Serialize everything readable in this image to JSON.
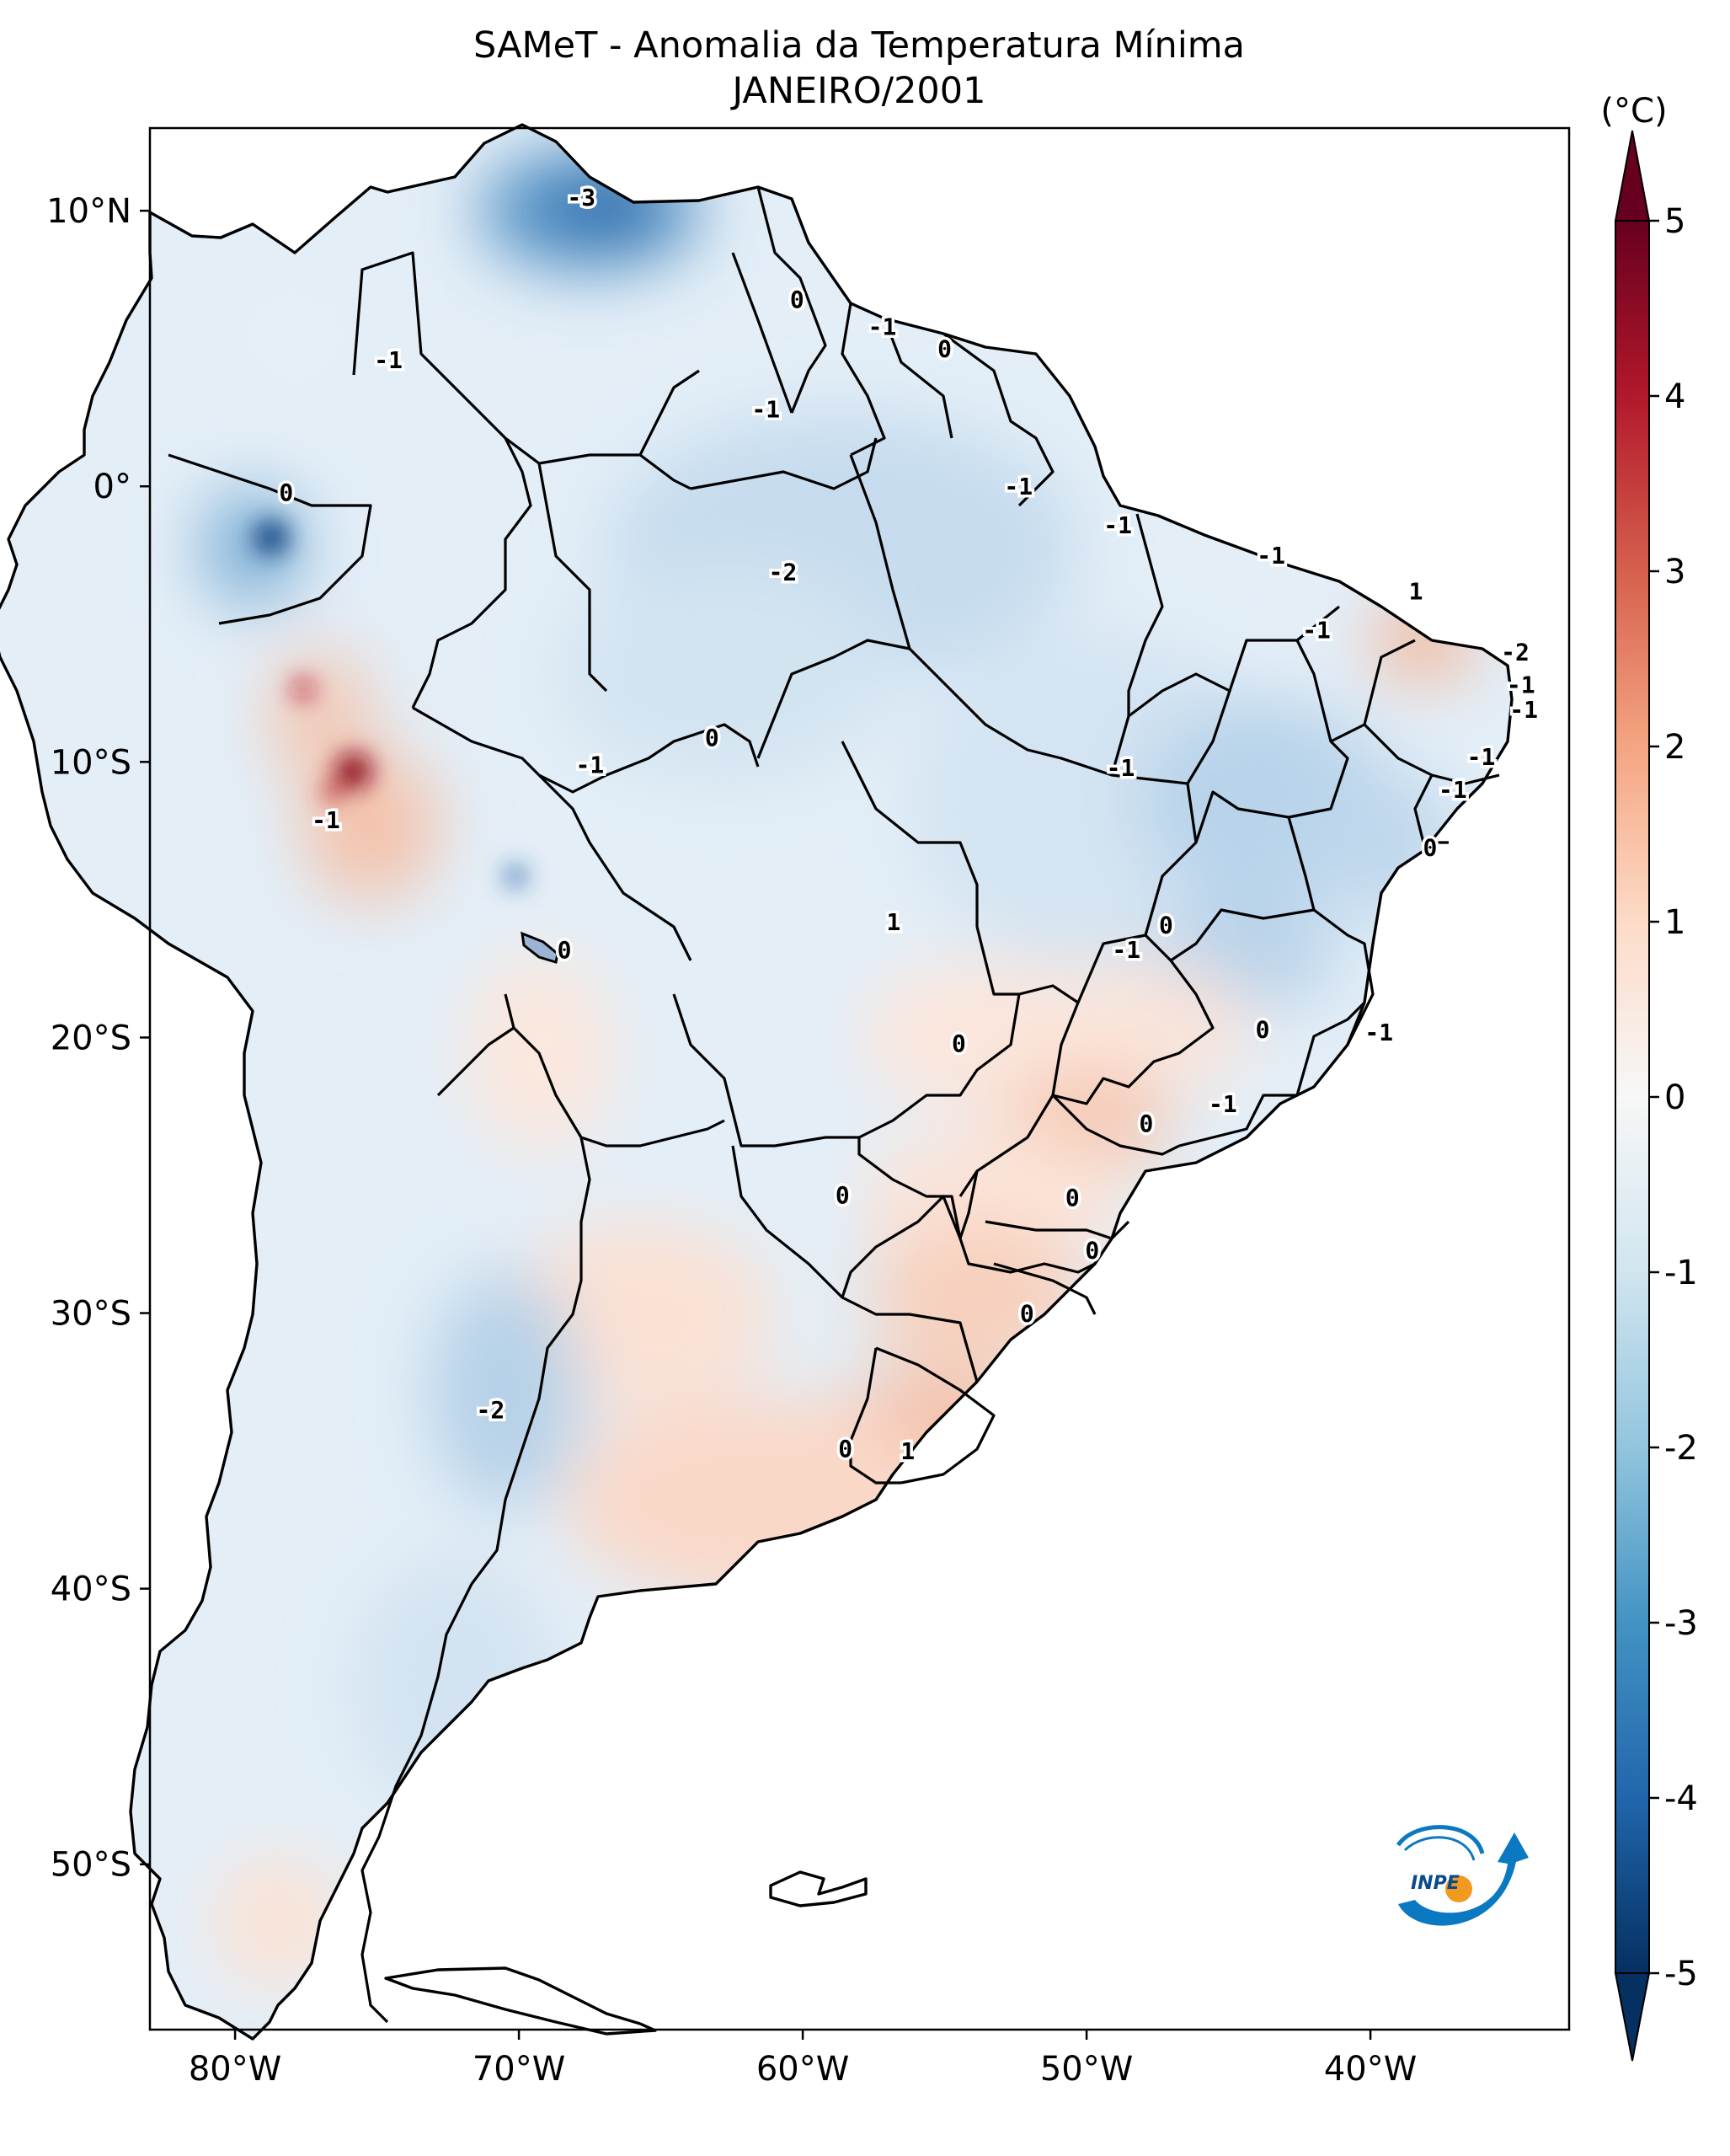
{
  "title": "SAMeT - Anomalia da Temperatura Mínima",
  "subtitle": "JANEIRO/2001",
  "chart_data": {
    "type": "map",
    "variable": "Anomalia da Temperatura Mínima",
    "colorbar": {
      "unit_label": "(°C)",
      "range": [
        -5,
        5
      ],
      "ticks": [
        5,
        4,
        3,
        2,
        1,
        0,
        -1,
        -2,
        -3,
        -4,
        -5
      ],
      "tick_labels": [
        "5",
        "4",
        "3",
        "2",
        "1",
        "0",
        "-1",
        "-2",
        "-3",
        "-4",
        "-5"
      ],
      "extend": "both",
      "colors_low_to_high": [
        "#053061",
        "#2166ac",
        "#4393c3",
        "#92c5de",
        "#d1e5f0",
        "#f7f7f7",
        "#fddbc7",
        "#f4a582",
        "#d6604d",
        "#b2182b",
        "#67001f"
      ]
    },
    "lon_range": [
      -83,
      -33
    ],
    "lat_range": [
      -56,
      13
    ],
    "lon_ticks": [
      "80°W",
      "70°W",
      "60°W",
      "50°W",
      "40°W"
    ],
    "lat_ticks": [
      "10°N",
      "0°",
      "10°S",
      "20°S",
      "30°S",
      "40°S",
      "50°S"
    ],
    "contour_labels": [
      {
        "text": "-3",
        "lon": -67.8,
        "lat": 10.5
      },
      {
        "text": "0",
        "lon": -60.2,
        "lat": 6.8
      },
      {
        "text": "-1",
        "lon": -57.2,
        "lat": 5.8
      },
      {
        "text": "0",
        "lon": -55.0,
        "lat": 5.0
      },
      {
        "text": "-1",
        "lon": -74.6,
        "lat": 4.6
      },
      {
        "text": "-1",
        "lon": -61.3,
        "lat": 2.8
      },
      {
        "text": "0",
        "lon": -78.2,
        "lat": -0.2
      },
      {
        "text": "-1",
        "lon": -52.4,
        "lat": 0.0
      },
      {
        "text": "-1",
        "lon": -48.9,
        "lat": -1.4
      },
      {
        "text": "-2",
        "lon": -60.7,
        "lat": -3.1
      },
      {
        "text": "-1",
        "lon": -43.5,
        "lat": -2.5
      },
      {
        "text": "1",
        "lon": -38.4,
        "lat": -3.8
      },
      {
        "text": "-1",
        "lon": -41.9,
        "lat": -5.2
      },
      {
        "text": "-2",
        "lon": -34.9,
        "lat": -6.0
      },
      {
        "text": "-1",
        "lon": -34.7,
        "lat": -7.2
      },
      {
        "text": "-1",
        "lon": -34.6,
        "lat": -8.1
      },
      {
        "text": "0",
        "lon": -63.2,
        "lat": -9.1
      },
      {
        "text": "-1",
        "lon": -36.1,
        "lat": -9.8
      },
      {
        "text": "-1",
        "lon": -67.5,
        "lat": -10.1
      },
      {
        "text": "-1",
        "lon": -48.8,
        "lat": -10.2
      },
      {
        "text": "-1",
        "lon": -37.1,
        "lat": -11.0
      },
      {
        "text": "-1",
        "lon": -76.8,
        "lat": -12.1
      },
      {
        "text": "0",
        "lon": -37.9,
        "lat": -13.1
      },
      {
        "text": "1",
        "lon": -56.8,
        "lat": -15.8
      },
      {
        "text": "0",
        "lon": -47.2,
        "lat": -15.9
      },
      {
        "text": "-1",
        "lon": -48.6,
        "lat": -16.8
      },
      {
        "text": "0",
        "lon": -68.4,
        "lat": -16.8
      },
      {
        "text": "0",
        "lon": -54.5,
        "lat": -20.2
      },
      {
        "text": "0",
        "lon": -43.8,
        "lat": -19.7
      },
      {
        "text": "-1",
        "lon": -39.7,
        "lat": -19.8
      },
      {
        "text": "-1",
        "lon": -45.2,
        "lat": -22.4
      },
      {
        "text": "0",
        "lon": -47.9,
        "lat": -23.1
      },
      {
        "text": "0",
        "lon": -58.6,
        "lat": -25.7
      },
      {
        "text": "0",
        "lon": -50.5,
        "lat": -25.8
      },
      {
        "text": "0",
        "lon": -49.8,
        "lat": -27.7
      },
      {
        "text": "0",
        "lon": -52.1,
        "lat": -30.0
      },
      {
        "text": "-2",
        "lon": -71.0,
        "lat": -33.5
      },
      {
        "text": "0",
        "lon": -58.5,
        "lat": -34.9
      },
      {
        "text": "1",
        "lon": -56.3,
        "lat": -35.0
      }
    ]
  }
}
